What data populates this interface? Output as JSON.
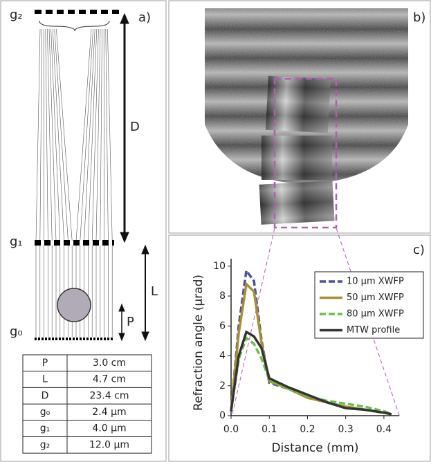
{
  "panel_a": {
    "label": "a)",
    "grating_labels": [
      "g₂",
      "g₁",
      "g₀"
    ],
    "dimension_labels": [
      "D",
      "L",
      "P"
    ],
    "table": {
      "rows": [
        [
          "P",
          "3.0 cm"
        ],
        [
          "L",
          "4.7 cm"
        ],
        [
          "D",
          "23.4 cm"
        ],
        [
          "g₀",
          "2.4 μm"
        ],
        [
          "g₁",
          "4.0 μm"
        ],
        [
          "g₂",
          "12.0 μm"
        ]
      ]
    }
  },
  "panel_b": {
    "label": "b)"
  },
  "chart_data": {
    "type": "line",
    "label": "c)",
    "xlabel": "Distance (mm)",
    "ylabel": "Refraction angle (µrad)",
    "x": [
      0,
      0.02,
      0.04,
      0.06,
      0.08,
      0.1,
      0.15,
      0.2,
      0.25,
      0.3,
      0.35,
      0.4,
      0.42
    ],
    "series": [
      {
        "name": "10 μm XWFP",
        "color": "#4a4fa8",
        "dash": true,
        "values": [
          0.3,
          6,
          9.7,
          9,
          5,
          2.2,
          1.8,
          1.2,
          0.9,
          0.6,
          0.4,
          0.2,
          0.1
        ]
      },
      {
        "name": "50 μm XWFP",
        "color": "#a89030",
        "dash": false,
        "values": [
          0.3,
          5.5,
          8.8,
          8.3,
          4.8,
          2.3,
          1.8,
          1.2,
          0.9,
          0.6,
          0.4,
          0.2,
          0.1
        ]
      },
      {
        "name": "80 μm XWFP",
        "color": "#6cbf4a",
        "dash": true,
        "values": [
          0.3,
          3.8,
          5.2,
          4.8,
          3.8,
          2.4,
          1.8,
          1.3,
          1.0,
          0.8,
          0.6,
          0.3,
          0.1
        ]
      },
      {
        "name": "MTW profile",
        "color": "#333333",
        "dash": false,
        "values": [
          0.3,
          4,
          5.6,
          5.3,
          4.5,
          2.5,
          1.9,
          1.4,
          0.9,
          0.5,
          0.4,
          0.2,
          0.1
        ]
      }
    ],
    "xlim": [
      0,
      0.44
    ],
    "ylim": [
      0,
      10.5
    ],
    "xticks": [
      {
        "value": 0,
        "label": "0.0"
      },
      0.1,
      0.2,
      0.3,
      0.4
    ],
    "yticks": [
      0,
      2,
      4,
      6,
      8,
      10
    ],
    "legend": "upper right"
  }
}
